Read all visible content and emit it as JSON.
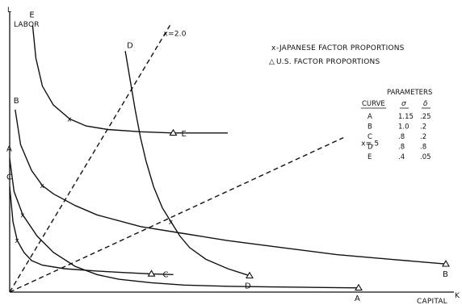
{
  "chart_data": {
    "type": "line",
    "xlabel": "CAPITAL",
    "ylabel": "LABOR",
    "x_axis_end": "K",
    "y_axis_end": "L",
    "legend": {
      "position": "top-right",
      "japanese_marker": "x",
      "japanese_label": "-JAPANESE FACTOR PROPORTIONS",
      "us_marker": "△",
      "us_label": "U.S. FACTOR PROPORTIONS"
    },
    "rays": [
      {
        "label": "x = .5",
        "slope": 0.5
      },
      {
        "label": "x = 2.0",
        "slope": 2.0
      }
    ],
    "series": [
      {
        "name": "A",
        "end_label": "A",
        "points": [
          [
            0,
            0.57
          ],
          [
            0.4,
            0.43
          ],
          [
            1.2,
            0.33
          ],
          [
            2.5,
            0.24
          ],
          [
            4,
            0.17
          ],
          [
            6,
            0.11
          ],
          [
            8,
            0.075
          ],
          [
            10,
            0.055
          ],
          [
            13,
            0.04
          ],
          [
            16,
            0.03
          ],
          [
            20,
            0.025
          ],
          [
            24,
            0.022
          ],
          [
            28,
            0.02
          ],
          [
            32,
            0.018
          ]
        ],
        "japanese": [
          1.2,
          0.33
        ],
        "us": [
          32,
          0.018
        ]
      },
      {
        "name": "B",
        "end_label": "B",
        "points": [
          [
            0.5,
            0.78
          ],
          [
            1,
            0.63
          ],
          [
            2,
            0.52
          ],
          [
            3,
            0.455
          ],
          [
            4,
            0.42
          ],
          [
            6,
            0.37
          ],
          [
            8,
            0.33
          ],
          [
            12,
            0.28
          ],
          [
            16,
            0.25
          ],
          [
            20,
            0.22
          ],
          [
            25,
            0.19
          ],
          [
            30,
            0.16
          ],
          [
            35,
            0.14
          ],
          [
            40,
            0.12
          ]
        ],
        "japanese": [
          3,
          0.455
        ],
        "us": [
          40,
          0.12
        ]
      },
      {
        "name": "C",
        "end_label": "C",
        "points": [
          [
            0,
            0.45
          ],
          [
            0.3,
            0.3
          ],
          [
            0.7,
            0.22
          ],
          [
            1.3,
            0.17
          ],
          [
            2,
            0.135
          ],
          [
            3,
            0.115
          ],
          [
            5,
            0.1
          ],
          [
            8,
            0.09
          ],
          [
            10,
            0.085
          ],
          [
            12,
            0.08
          ],
          [
            13,
            0.078
          ],
          [
            15,
            0.075
          ]
        ],
        "japanese": [
          0.7,
          0.22
        ],
        "us": [
          13,
          0.078
        ]
      },
      {
        "name": "D",
        "end_label": "D",
        "points": [
          [
            10.6,
            1.03
          ],
          [
            11,
            0.92
          ],
          [
            11.5,
            0.78
          ],
          [
            12,
            0.66
          ],
          [
            12.5,
            0.56
          ],
          [
            13.2,
            0.45
          ],
          [
            14,
            0.36
          ],
          [
            14.8,
            0.3
          ],
          [
            15.6,
            0.24
          ],
          [
            16.5,
            0.19
          ],
          [
            18,
            0.14
          ],
          [
            20,
            0.1
          ],
          [
            22,
            0.07
          ]
        ],
        "japanese": [
          14.8,
          0.3
        ],
        "us": [
          22,
          0.07
        ]
      },
      {
        "name": "E",
        "end_label": "E",
        "points": [
          [
            2.1,
            1.14
          ],
          [
            2.4,
            1.0
          ],
          [
            3,
            0.88
          ],
          [
            4,
            0.8
          ],
          [
            5.5,
            0.74
          ],
          [
            7,
            0.71
          ],
          [
            9,
            0.695
          ],
          [
            12,
            0.685
          ],
          [
            15,
            0.68
          ],
          [
            18,
            0.68
          ],
          [
            20,
            0.68
          ]
        ],
        "japanese": [
          5.5,
          0.74
        ],
        "us": [
          15,
          0.68
        ]
      }
    ],
    "parameters_table": {
      "title": "PARAMETERS",
      "headers": [
        "CURVE",
        "σ",
        "δ"
      ],
      "rows": [
        [
          "A",
          "1.15",
          ".25"
        ],
        [
          "B",
          "1.0",
          ".2"
        ],
        [
          "C",
          ".8",
          ".2"
        ],
        [
          "D",
          ".8",
          ".8"
        ],
        [
          "E",
          ".4",
          ".05"
        ]
      ]
    }
  }
}
